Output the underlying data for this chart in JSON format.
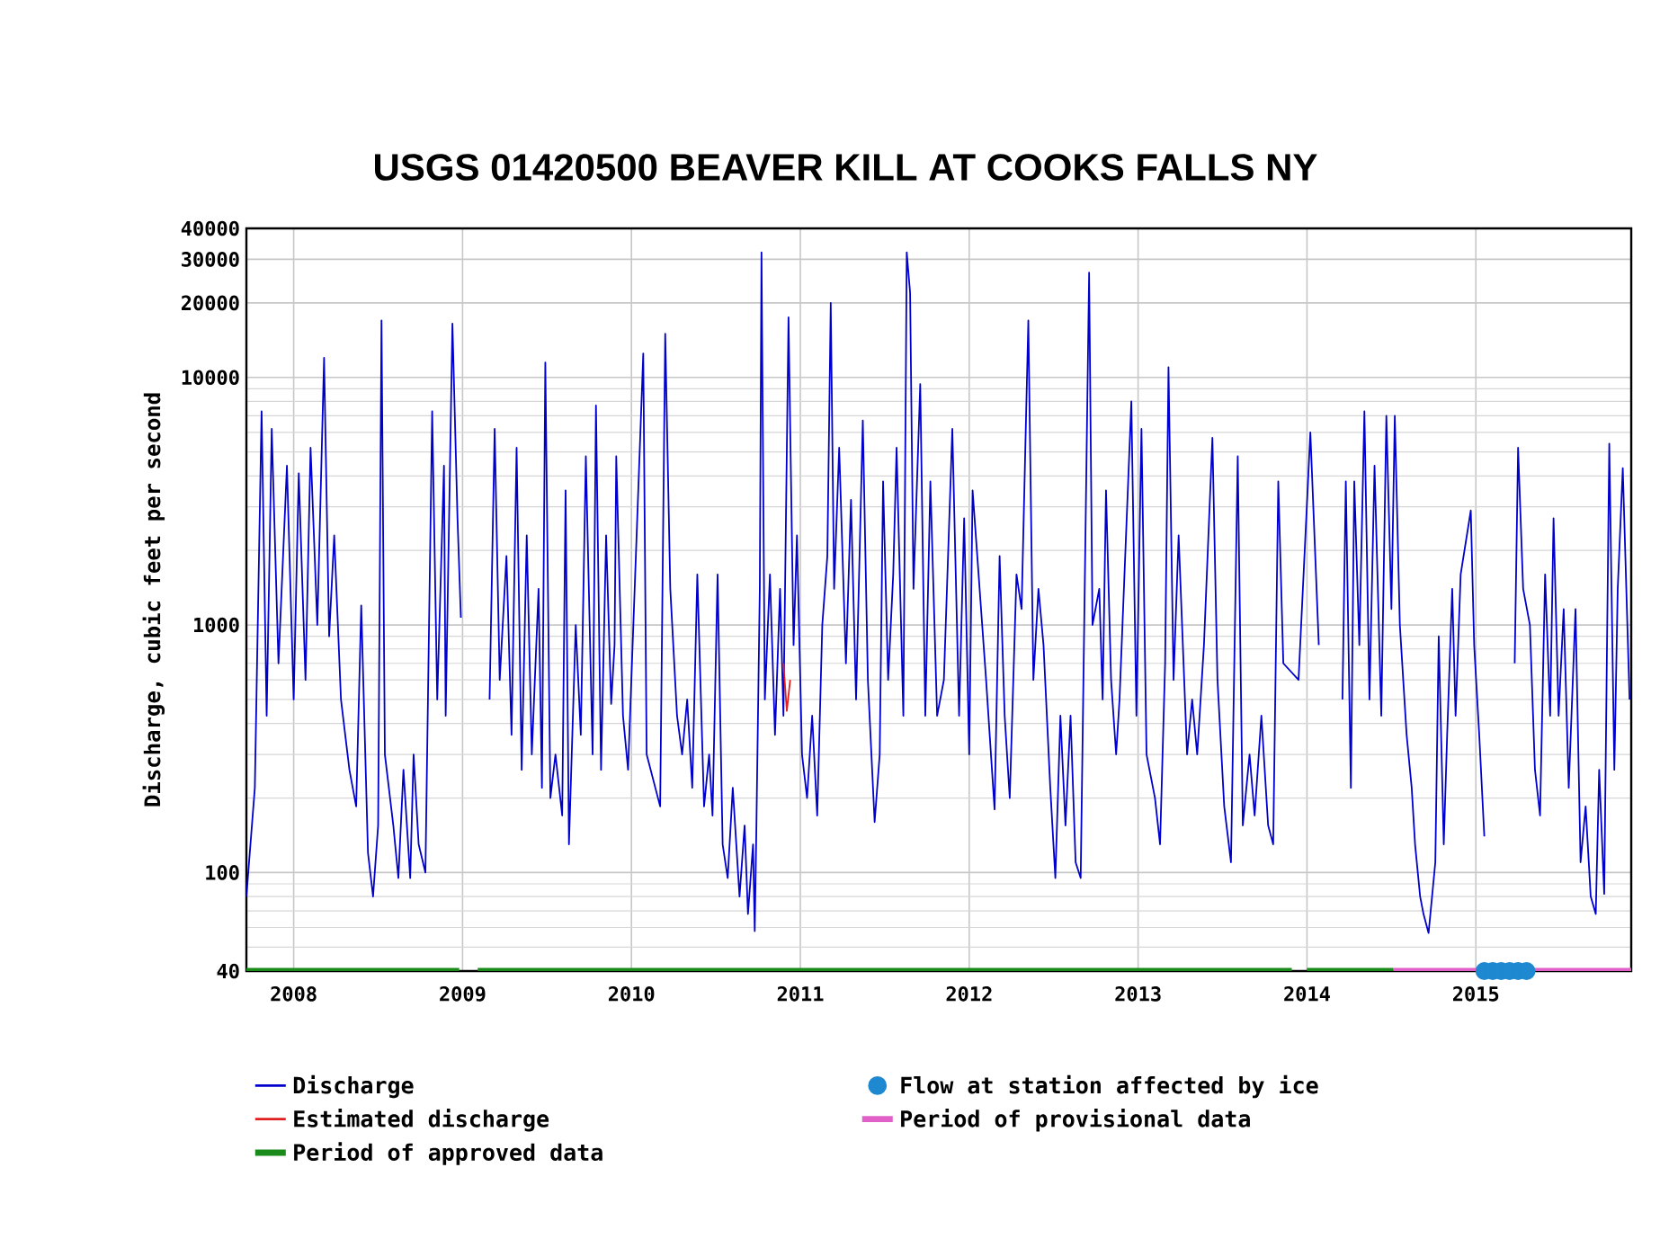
{
  "chart_data": {
    "type": "line",
    "title": "USGS 01420500 BEAVER KILL AT COOKS FALLS NY",
    "ylabel": "Discharge, cubic feet per second",
    "log": true,
    "grid": true,
    "legend": "bottom",
    "xlim": [
      2007.72,
      2015.92
    ],
    "xticks": [
      2008,
      2009,
      2010,
      2011,
      2012,
      2013,
      2014,
      2015
    ],
    "ylim": [
      40,
      40000
    ],
    "yticks": [
      40,
      100,
      1000,
      10000,
      20000,
      30000,
      40000
    ],
    "series": [
      {
        "name": "Discharge",
        "color": "#0000cc",
        "x": [
          2007.72,
          2007.77,
          2007.81,
          2007.84,
          2007.87,
          2007.91,
          2007.96,
          2008.0,
          2008.03,
          2008.07,
          2008.1,
          2008.14,
          2008.18,
          2008.21,
          2008.24,
          2008.28,
          2008.33,
          2008.37,
          2008.4,
          2008.44,
          2008.47,
          2008.5,
          2008.52,
          2008.54,
          2008.59,
          2008.62,
          2008.65,
          2008.69,
          2008.71,
          2008.74,
          2008.78,
          2008.82,
          2008.85,
          2008.89,
          2008.9,
          2008.94,
          2008.97,
          2008.99,
          2009.04,
          2009.16,
          2009.19,
          2009.22,
          2009.26,
          2009.29,
          2009.32,
          2009.35,
          2009.38,
          2009.41,
          2009.45,
          2009.47,
          2009.49,
          2009.52,
          2009.55,
          2009.59,
          2009.61,
          2009.63,
          2009.67,
          2009.7,
          2009.73,
          2009.77,
          2009.79,
          2009.82,
          2009.85,
          2009.88,
          2009.9,
          2009.91,
          2009.95,
          2009.98,
          2010.07,
          2010.09,
          2010.17,
          2010.2,
          2010.23,
          2010.27,
          2010.3,
          2010.33,
          2010.36,
          2010.39,
          2010.43,
          2010.46,
          2010.48,
          2010.51,
          2010.54,
          2010.57,
          2010.6,
          2010.64,
          2010.67,
          2010.69,
          2010.72,
          2010.73,
          2010.74,
          2010.76,
          2010.77,
          2010.79,
          2010.82,
          2010.85,
          2010.88,
          2010.9,
          2010.93,
          2010.96,
          2010.98,
          2011.01,
          2011.04,
          2011.07,
          2011.1,
          2011.13,
          2011.16,
          2011.18,
          2011.2,
          2011.23,
          2011.27,
          2011.3,
          2011.33,
          2011.37,
          2011.4,
          2011.44,
          2011.47,
          2011.49,
          2011.52,
          2011.55,
          2011.57,
          2011.61,
          2011.63,
          2011.65,
          2011.67,
          2011.71,
          2011.74,
          2011.77,
          2011.81,
          2011.85,
          2011.9,
          2011.94,
          2011.97,
          2012.0,
          2012.02,
          2012.1,
          2012.15,
          2012.18,
          2012.21,
          2012.24,
          2012.28,
          2012.31,
          2012.35,
          2012.38,
          2012.41,
          2012.44,
          2012.48,
          2012.51,
          2012.54,
          2012.57,
          2012.6,
          2012.63,
          2012.66,
          2012.71,
          2012.73,
          2012.77,
          2012.79,
          2012.81,
          2012.84,
          2012.87,
          2012.89,
          2012.96,
          2012.99,
          2013.02,
          2013.05,
          2013.1,
          2013.13,
          2013.16,
          2013.18,
          2013.21,
          2013.24,
          2013.29,
          2013.32,
          2013.35,
          2013.39,
          2013.44,
          2013.47,
          2013.51,
          2013.55,
          2013.59,
          2013.62,
          2013.66,
          2013.69,
          2013.73,
          2013.77,
          2013.8,
          2013.83,
          2013.86,
          2013.95,
          2014.02,
          2014.07,
          2014.1,
          2014.21,
          2014.23,
          2014.26,
          2014.28,
          2014.31,
          2014.34,
          2014.37,
          2014.4,
          2014.44,
          2014.47,
          2014.5,
          2014.52,
          2014.55,
          2014.59,
          2014.62,
          2014.64,
          2014.67,
          2014.69,
          2014.72,
          2014.76,
          2014.78,
          2014.81,
          2014.83,
          2014.86,
          2014.88,
          2014.91,
          2014.97,
          2014.99,
          2015.02,
          2015.05,
          2015.1,
          2015.23,
          2015.25,
          2015.28,
          2015.32,
          2015.35,
          2015.38,
          2015.41,
          2015.44,
          2015.46,
          2015.49,
          2015.52,
          2015.55,
          2015.59,
          2015.62,
          2015.65,
          2015.68,
          2015.71,
          2015.73,
          2015.76,
          2015.79,
          2015.82,
          2015.84,
          2015.87,
          2015.91
        ],
        "values": [
          80,
          220,
          7300,
          430,
          6200,
          700,
          4400,
          500,
          4100,
          600,
          5200,
          1000,
          12000,
          900,
          2300,
          500,
          260,
          185,
          1200,
          120,
          80,
          155,
          17000,
          300,
          155,
          95,
          260,
          95,
          300,
          130,
          100,
          7300,
          500,
          4400,
          430,
          16500,
          2700,
          1070,
          null,
          500,
          6200,
          600,
          1900,
          360,
          5200,
          260,
          2300,
          300,
          1400,
          220,
          11500,
          200,
          300,
          170,
          3500,
          130,
          1000,
          360,
          4800,
          300,
          7700,
          260,
          2300,
          480,
          830,
          4800,
          430,
          260,
          12500,
          300,
          185,
          15000,
          1400,
          430,
          300,
          500,
          220,
          1600,
          185,
          300,
          170,
          1600,
          130,
          95,
          220,
          80,
          155,
          68,
          130,
          58,
          155,
          1400,
          32000,
          500,
          1600,
          360,
          1400,
          430,
          17500,
          830,
          2300,
          300,
          200,
          430,
          170,
          1000,
          1900,
          20000,
          1400,
          5200,
          700,
          3200,
          500,
          6700,
          600,
          160,
          300,
          3800,
          600,
          1600,
          5200,
          430,
          32000,
          22000,
          1400,
          9400,
          430,
          3800,
          430,
          600,
          6200,
          430,
          2700,
          300,
          3500,
          600,
          180,
          1900,
          430,
          200,
          1600,
          1160,
          17000,
          600,
          1400,
          830,
          220,
          95,
          430,
          155,
          430,
          110,
          95,
          26500,
          1000,
          1400,
          500,
          3500,
          600,
          300,
          500,
          8000,
          430,
          6200,
          300,
          200,
          130,
          700,
          11000,
          600,
          2300,
          300,
          500,
          300,
          830,
          5700,
          600,
          185,
          110,
          4800,
          155,
          300,
          170,
          430,
          155,
          130,
          3800,
          700,
          600,
          6000,
          830,
          null,
          500,
          3800,
          220,
          3800,
          830,
          7300,
          500,
          4400,
          430,
          7000,
          1160,
          7000,
          1000,
          360,
          220,
          130,
          80,
          68,
          57,
          110,
          900,
          130,
          360,
          1400,
          430,
          1600,
          2900,
          830,
          360,
          140,
          null,
          700,
          5200,
          1400,
          1000,
          260,
          170,
          1600,
          430,
          2700,
          430,
          1160,
          220,
          1160,
          110,
          185,
          80,
          68,
          260,
          82,
          5400,
          260,
          1400,
          4300,
          500
        ]
      },
      {
        "name": "Flow at station affected by ice",
        "type": "scatter",
        "marker": "circle",
        "color": "#1e88d0",
        "x": [
          2015.05,
          2015.1,
          2015.15,
          2015.2,
          2015.25,
          2015.3
        ],
        "values": [
          40,
          40,
          40,
          40,
          40,
          40
        ]
      },
      {
        "name": "Estimated discharge",
        "color": "#e02020",
        "x": [
          2010.9,
          2010.92,
          2010.94
        ],
        "values": [
          700,
          450,
          600
        ]
      },
      {
        "name": "Period of provisional data",
        "color": "#e060c8",
        "x": [
          2014.51,
          2015.92
        ],
        "values": [
          40,
          40
        ]
      },
      {
        "name": "Period of approved data",
        "color": "#1a8a1a",
        "x": [
          2007.72,
          2008.98,
          2009.0,
          2009.09,
          2013.91,
          2013.95,
          2014.0,
          2014.51
        ],
        "values": [
          40,
          40,
          null,
          40,
          40,
          null,
          40,
          40
        ]
      }
    ]
  }
}
